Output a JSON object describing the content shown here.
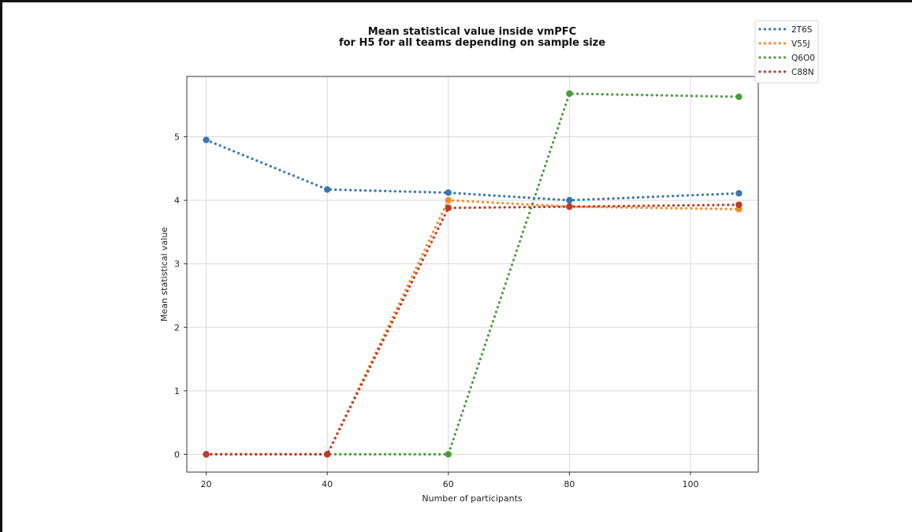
{
  "chart_data": {
    "type": "line",
    "title_lines": [
      "Mean statistical value inside vmPFC",
      "for H5 for all teams depending on sample size"
    ],
    "xlabel": "Number of participants",
    "ylabel": "Mean statistical value",
    "x": [
      20,
      40,
      60,
      80,
      108
    ],
    "xlim": [
      16.8,
      111.2
    ],
    "ylim": [
      -0.28,
      5.95
    ],
    "xticks": [
      20,
      40,
      60,
      80,
      100
    ],
    "yticks": [
      0,
      1,
      2,
      3,
      4,
      5
    ],
    "grid": true,
    "line_style": "dotted",
    "marker": "circle",
    "legend_position": "top-right, outside plot",
    "series": [
      {
        "name": "2T6S",
        "color": "#3a75b0",
        "values": [
          4.95,
          4.17,
          4.12,
          4.0,
          4.11
        ]
      },
      {
        "name": "V55J",
        "color": "#f28e2b",
        "values": [
          0.0,
          0.0,
          4.0,
          3.9,
          3.86
        ]
      },
      {
        "name": "Q6O0",
        "color": "#4a9e3a",
        "values": [
          0.0,
          0.0,
          0.0,
          5.68,
          5.63
        ]
      },
      {
        "name": "C88N",
        "color": "#c0392b",
        "values": [
          0.0,
          0.0,
          3.88,
          3.9,
          3.93
        ]
      }
    ]
  }
}
